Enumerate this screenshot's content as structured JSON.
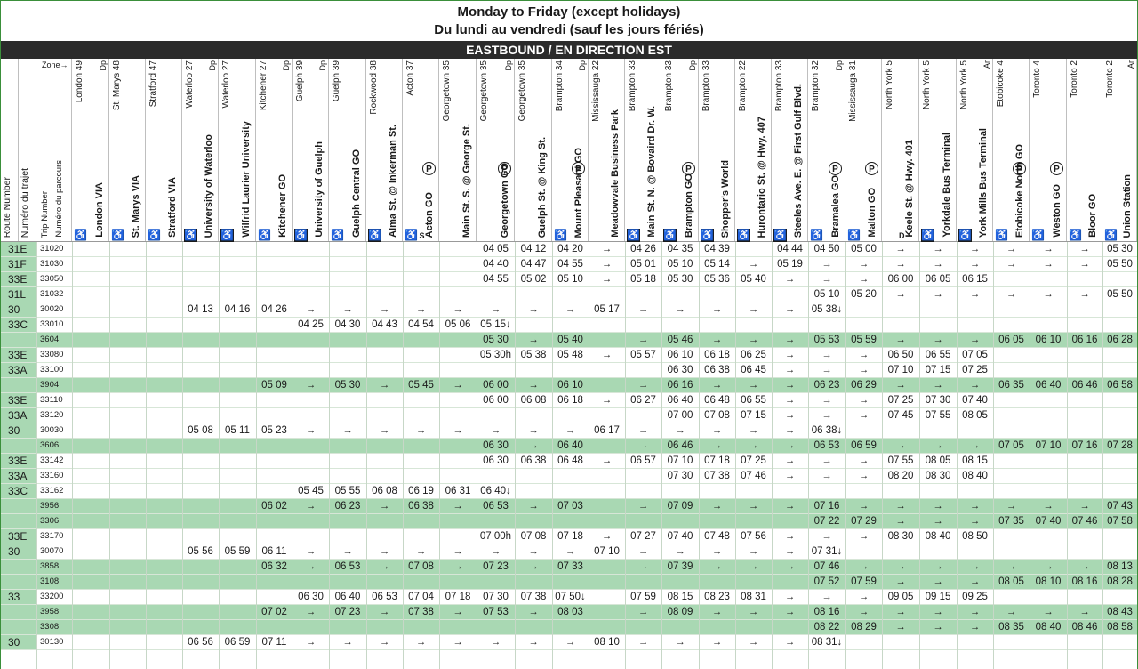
{
  "title_en": "Monday to Friday (except holidays)",
  "title_fr": "Du lundi au vendredi (sauf les jours fériés)",
  "direction": "EASTBOUND / EN DIRECTION EST",
  "header_labels": {
    "zone": "Zone→",
    "route_number": "Route Number",
    "route_number_fr": "Numéro du trajet",
    "trip_number": "Trip Number",
    "trip_number_fr": "Numéro du parcours"
  },
  "stops": [
    {
      "city": "London",
      "zone": "49",
      "dp": "Dp",
      "name": "London VIA",
      "icon": "light",
      "park": false,
      "mark": ""
    },
    {
      "city": "St. Marys",
      "zone": "48",
      "dp": "",
      "name": "St. Marys VIA",
      "icon": "light",
      "park": false,
      "mark": ""
    },
    {
      "city": "Stratford",
      "zone": "47",
      "dp": "",
      "name": "Stratford VIA",
      "icon": "light",
      "park": false,
      "mark": ""
    },
    {
      "city": "Waterloo",
      "zone": "27",
      "dp": "Dp",
      "name": "University of Waterloo",
      "icon": "dark",
      "park": false,
      "mark": ""
    },
    {
      "city": "Waterloo",
      "zone": "27",
      "dp": "",
      "name": "Wilfrid Laurier University",
      "icon": "dark",
      "park": false,
      "mark": ""
    },
    {
      "city": "Kitchener",
      "zone": "27",
      "dp": "Dp",
      "name": "Kitchener GO",
      "icon": "plain",
      "park": false,
      "mark": ""
    },
    {
      "city": "Guelph",
      "zone": "39",
      "dp": "Dp",
      "name": "University of Guelph",
      "icon": "dark",
      "park": false,
      "mark": ""
    },
    {
      "city": "Guelph",
      "zone": "39",
      "dp": "",
      "name": "Guelph Central GO",
      "icon": "plain",
      "park": false,
      "mark": ""
    },
    {
      "city": "Rockwood",
      "zone": "38",
      "dp": "",
      "name": "Alma St. @ Inkerman St.",
      "icon": "dark",
      "park": false,
      "mark": ""
    },
    {
      "city": "Acton",
      "zone": "37",
      "dp": "",
      "name": "Acton GO",
      "icon": "light",
      "park": true,
      "mark": "S"
    },
    {
      "city": "Georgetown",
      "zone": "35",
      "dp": "",
      "name": "Main St. S. @ George St.",
      "icon": "",
      "park": false,
      "mark": ""
    },
    {
      "city": "Georgetown",
      "zone": "35",
      "dp": "Dp",
      "name": "Georgetown GO",
      "icon": "",
      "park": true,
      "mark": ""
    },
    {
      "city": "Georgetown",
      "zone": "35",
      "dp": "",
      "name": "Guelph St. @ King St.",
      "icon": "",
      "park": false,
      "mark": ""
    },
    {
      "city": "Brampton",
      "zone": "34",
      "dp": "Dp",
      "name": "Mount Pleasant GO",
      "icon": "plain",
      "park": true,
      "mark": ""
    },
    {
      "city": "Mississauga",
      "zone": "22",
      "dp": "",
      "name": "Meadowvale Business Park",
      "icon": "",
      "park": false,
      "mark": ""
    },
    {
      "city": "Brampton",
      "zone": "33",
      "dp": "",
      "name": "Main St. N. @ Bovaird Dr. W.",
      "icon": "dark",
      "park": false,
      "mark": ""
    },
    {
      "city": "Brampton",
      "zone": "33",
      "dp": "Dp",
      "name": "Brampton GO",
      "icon": "dark",
      "park": true,
      "mark": ""
    },
    {
      "city": "Brampton",
      "zone": "33",
      "dp": "",
      "name": "Shopper's World",
      "icon": "dark",
      "park": false,
      "mark": ""
    },
    {
      "city": "Brampton",
      "zone": "22",
      "dp": "",
      "name": "Hurontario St. @ Hwy. 407",
      "icon": "dark",
      "park": false,
      "mark": ""
    },
    {
      "city": "Brampton",
      "zone": "33",
      "dp": "",
      "name": "Steeles Ave. E. @ First Gulf Blvd.",
      "icon": "dark",
      "park": false,
      "mark": ""
    },
    {
      "city": "Brampton",
      "zone": "32",
      "dp": "Dp",
      "name": "Bramalea GO",
      "icon": "plain",
      "park": true,
      "mark": ""
    },
    {
      "city": "Mississauga",
      "zone": "31",
      "dp": "",
      "name": "Malton GO",
      "icon": "plain",
      "park": true,
      "mark": ""
    },
    {
      "city": "North York",
      "zone": "5",
      "dp": "",
      "name": "Keele St. @ Hwy. 401",
      "icon": "",
      "park": false,
      "mark": "D"
    },
    {
      "city": "North York",
      "zone": "5",
      "dp": "",
      "name": "Yorkdale Bus Terminal",
      "icon": "dark",
      "park": false,
      "mark": ""
    },
    {
      "city": "North York",
      "zone": "5",
      "dp": "Ar",
      "name": "York Mills Bus Terminal",
      "icon": "dark",
      "park": false,
      "mark": ""
    },
    {
      "city": "Etobicoke",
      "zone": "4",
      "dp": "",
      "name": "Etobicoke North GO",
      "icon": "light",
      "park": true,
      "mark": ""
    },
    {
      "city": "Toronto",
      "zone": "4",
      "dp": "",
      "name": "Weston GO",
      "icon": "light",
      "park": true,
      "mark": ""
    },
    {
      "city": "Toronto",
      "zone": "2",
      "dp": "",
      "name": "Bloor GO",
      "icon": "light",
      "park": false,
      "mark": ""
    },
    {
      "city": "Toronto",
      "zone": "2",
      "dp": "Ar",
      "name": "Union Station",
      "icon": "plain",
      "park": false,
      "mark": ""
    }
  ],
  "trips": [
    {
      "route": "31E",
      "trip": "31020",
      "alt": false,
      "times": [
        "",
        "",
        "",
        "",
        "",
        "",
        "",
        "",
        "",
        "",
        "",
        "04 05",
        "04 12",
        "04 20",
        "→",
        "04 26",
        "04 35",
        "04 39",
        "",
        "04 44",
        "04 50",
        "05 00",
        "→",
        "→",
        "→",
        "→",
        "→",
        "→",
        "05 30"
      ]
    },
    {
      "route": "31F",
      "trip": "31030",
      "alt": false,
      "times": [
        "",
        "",
        "",
        "",
        "",
        "",
        "",
        "",
        "",
        "",
        "",
        "04 40",
        "04 47",
        "04 55",
        "→",
        "05 01",
        "05 10",
        "05 14",
        "→",
        "05 19",
        "→",
        "→",
        "→",
        "→",
        "→",
        "→",
        "→",
        "→",
        "05 50"
      ]
    },
    {
      "route": "33E",
      "trip": "33050",
      "alt": false,
      "times": [
        "",
        "",
        "",
        "",
        "",
        "",
        "",
        "",
        "",
        "",
        "",
        "04 55",
        "05 02",
        "05 10",
        "→",
        "05 18",
        "05 30",
        "05 36",
        "05 40",
        "→",
        "→",
        "→",
        "06 00",
        "06 05",
        "06 15",
        "",
        "",
        "",
        ""
      ]
    },
    {
      "route": "31L",
      "trip": "31032",
      "alt": false,
      "times": [
        "",
        "",
        "",
        "",
        "",
        "",
        "",
        "",
        "",
        "",
        "",
        "",
        "",
        "",
        "",
        "",
        "",
        "",
        "",
        "",
        "05 10",
        "05 20",
        "→",
        "→",
        "→",
        "→",
        "→",
        "→",
        "05 50"
      ]
    },
    {
      "route": "30",
      "trip": "30020",
      "alt": false,
      "times": [
        "",
        "",
        "",
        "04 13",
        "04 16",
        "04 26",
        "→",
        "→",
        "→",
        "→",
        "→",
        "→",
        "→",
        "→",
        "05 17",
        "→",
        "→",
        "→",
        "→",
        "→",
        "05 38↓",
        "",
        "",
        "",
        "",
        "",
        "",
        "",
        ""
      ]
    },
    {
      "route": "33C",
      "trip": "33010",
      "alt": false,
      "times": [
        "",
        "",
        "",
        "",
        "",
        "",
        "04 25",
        "04 30",
        "04 43",
        "04 54",
        "05 06",
        "05 15↓",
        "",
        "",
        "",
        "",
        "",
        "",
        "",
        "",
        "",
        "",
        "",
        "",
        "",
        "",
        "",
        "",
        ""
      ]
    },
    {
      "route": "",
      "trip": "3604",
      "alt": true,
      "times": [
        "",
        "",
        "",
        "",
        "",
        "",
        "",
        "",
        "",
        "",
        "",
        "05 30",
        "→",
        "05 40",
        "",
        "→",
        "05 46",
        "→",
        "→",
        "→",
        "05 53",
        "05 59",
        "→",
        "→",
        "→",
        "06 05",
        "06 10",
        "06 16",
        "06 28"
      ]
    },
    {
      "route": "33E",
      "trip": "33080",
      "alt": false,
      "times": [
        "",
        "",
        "",
        "",
        "",
        "",
        "",
        "",
        "",
        "",
        "",
        "05 30h",
        "05 38",
        "05 48",
        "→",
        "05 57",
        "06 10",
        "06 18",
        "06 25",
        "→",
        "→",
        "→",
        "06 50",
        "06 55",
        "07 05",
        "",
        "",
        "",
        ""
      ]
    },
    {
      "route": "33A",
      "trip": "33100",
      "alt": false,
      "times": [
        "",
        "",
        "",
        "",
        "",
        "",
        "",
        "",
        "",
        "",
        "",
        "",
        "",
        "",
        "",
        "",
        "06 30",
        "06 38",
        "06 45",
        "→",
        "→",
        "→",
        "07 10",
        "07 15",
        "07 25",
        "",
        "",
        "",
        ""
      ]
    },
    {
      "route": "",
      "trip": "3904",
      "alt": true,
      "times": [
        "",
        "",
        "",
        "",
        "",
        "05 09",
        "→",
        "05 30",
        "→",
        "05 45",
        "→",
        "06 00",
        "→",
        "06 10",
        "",
        "→",
        "06 16",
        "→",
        "→",
        "→",
        "06 23",
        "06 29",
        "→",
        "→",
        "→",
        "06 35",
        "06 40",
        "06 46",
        "06 58"
      ]
    },
    {
      "route": "33E",
      "trip": "33110",
      "alt": false,
      "times": [
        "",
        "",
        "",
        "",
        "",
        "",
        "",
        "",
        "",
        "",
        "",
        "06 00",
        "06 08",
        "06 18",
        "→",
        "06 27",
        "06 40",
        "06 48",
        "06 55",
        "→",
        "→",
        "→",
        "07 25",
        "07 30",
        "07 40",
        "",
        "",
        "",
        ""
      ]
    },
    {
      "route": "33A",
      "trip": "33120",
      "alt": false,
      "times": [
        "",
        "",
        "",
        "",
        "",
        "",
        "",
        "",
        "",
        "",
        "",
        "",
        "",
        "",
        "",
        "",
        "07 00",
        "07 08",
        "07 15",
        "→",
        "→",
        "→",
        "07 45",
        "07 55",
        "08 05",
        "",
        "",
        "",
        ""
      ]
    },
    {
      "route": "30",
      "trip": "30030",
      "alt": false,
      "times": [
        "",
        "",
        "",
        "05 08",
        "05 11",
        "05 23",
        "→",
        "→",
        "→",
        "→",
        "→",
        "→",
        "→",
        "→",
        "06 17",
        "→",
        "→",
        "→",
        "→",
        "→",
        "06 38↓",
        "",
        "",
        "",
        "",
        "",
        "",
        "",
        ""
      ]
    },
    {
      "route": "",
      "trip": "3606",
      "alt": true,
      "times": [
        "",
        "",
        "",
        "",
        "",
        "",
        "",
        "",
        "",
        "",
        "",
        "06 30",
        "→",
        "06 40",
        "",
        "→",
        "06 46",
        "→",
        "→",
        "→",
        "06 53",
        "06 59",
        "→",
        "→",
        "→",
        "07 05",
        "07 10",
        "07 16",
        "07 28"
      ]
    },
    {
      "route": "33E",
      "trip": "33142",
      "alt": false,
      "times": [
        "",
        "",
        "",
        "",
        "",
        "",
        "",
        "",
        "",
        "",
        "",
        "06 30",
        "06 38",
        "06 48",
        "→",
        "06 57",
        "07 10",
        "07 18",
        "07 25",
        "→",
        "→",
        "→",
        "07 55",
        "08 05",
        "08 15",
        "",
        "",
        "",
        ""
      ]
    },
    {
      "route": "33A",
      "trip": "33160",
      "alt": false,
      "times": [
        "",
        "",
        "",
        "",
        "",
        "",
        "",
        "",
        "",
        "",
        "",
        "",
        "",
        "",
        "",
        "",
        "07 30",
        "07 38",
        "07 46",
        "→",
        "→",
        "→",
        "08 20",
        "08 30",
        "08 40",
        "",
        "",
        "",
        ""
      ]
    },
    {
      "route": "33C",
      "trip": "33162",
      "alt": false,
      "times": [
        "",
        "",
        "",
        "",
        "",
        "",
        "05 45",
        "05 55",
        "06 08",
        "06 19",
        "06 31",
        "06 40↓",
        "",
        "",
        "",
        "",
        "",
        "",
        "",
        "",
        "",
        "",
        "",
        "",
        "",
        "",
        "",
        "",
        ""
      ]
    },
    {
      "route": "",
      "trip": "3956",
      "alt": true,
      "times": [
        "",
        "",
        "",
        "",
        "",
        "06 02",
        "→",
        "06 23",
        "→",
        "06 38",
        "→",
        "06 53",
        "→",
        "07 03",
        "",
        "→",
        "07 09",
        "→",
        "→",
        "→",
        "07 16",
        "→",
        "→",
        "→",
        "→",
        "→",
        "→",
        "→",
        "07 43"
      ]
    },
    {
      "route": "",
      "trip": "3306",
      "alt": true,
      "times": [
        "",
        "",
        "",
        "",
        "",
        "",
        "",
        "",
        "",
        "",
        "",
        "",
        "",
        "",
        "",
        "",
        "",
        "",
        "",
        "",
        "07 22",
        "07 29",
        "→",
        "→",
        "→",
        "07 35",
        "07 40",
        "07 46",
        "07 58"
      ]
    },
    {
      "route": "33E",
      "trip": "33170",
      "alt": false,
      "times": [
        "",
        "",
        "",
        "",
        "",
        "",
        "",
        "",
        "",
        "",
        "",
        "07 00h",
        "07 08",
        "07 18",
        "→",
        "07 27",
        "07 40",
        "07 48",
        "07 56",
        "→",
        "→",
        "→",
        "08 30",
        "08 40",
        "08 50",
        "",
        "",
        "",
        ""
      ]
    },
    {
      "route": "30",
      "trip": "30070",
      "alt": false,
      "times": [
        "",
        "",
        "",
        "05 56",
        "05 59",
        "06 11",
        "→",
        "→",
        "→",
        "→",
        "→",
        "→",
        "→",
        "→",
        "07 10",
        "→",
        "→",
        "→",
        "→",
        "→",
        "07 31↓",
        "",
        "",
        "",
        "",
        "",
        "",
        "",
        ""
      ]
    },
    {
      "route": "",
      "trip": "3858",
      "alt": true,
      "times": [
        "",
        "",
        "",
        "",
        "",
        "06 32",
        "→",
        "06 53",
        "→",
        "07 08",
        "→",
        "07 23",
        "→",
        "07 33",
        "",
        "→",
        "07 39",
        "→",
        "→",
        "→",
        "07 46",
        "→",
        "→",
        "→",
        "→",
        "→",
        "→",
        "→",
        "08 13"
      ]
    },
    {
      "route": "",
      "trip": "3108",
      "alt": true,
      "times": [
        "",
        "",
        "",
        "",
        "",
        "",
        "",
        "",
        "",
        "",
        "",
        "",
        "",
        "",
        "",
        "",
        "",
        "",
        "",
        "",
        "07 52",
        "07 59",
        "→",
        "→",
        "→",
        "08 05",
        "08 10",
        "08 16",
        "08 28"
      ]
    },
    {
      "route": "33",
      "trip": "33200",
      "alt": false,
      "times": [
        "",
        "",
        "",
        "",
        "",
        "",
        "06 30",
        "06 40",
        "06 53",
        "07 04",
        "07 18",
        "07 30",
        "07 38",
        "07 50↓",
        "",
        "07 59",
        "08 15",
        "08 23",
        "08 31",
        "→",
        "→",
        "→",
        "09 05",
        "09 15",
        "09 25",
        "",
        "",
        "",
        ""
      ]
    },
    {
      "route": "",
      "trip": "3958",
      "alt": true,
      "times": [
        "",
        "",
        "",
        "",
        "",
        "07 02",
        "→",
        "07 23",
        "→",
        "07 38",
        "→",
        "07 53",
        "→",
        "08 03",
        "",
        "→",
        "08 09",
        "→",
        "→",
        "→",
        "08 16",
        "→",
        "→",
        "→",
        "→",
        "→",
        "→",
        "→",
        "08 43"
      ]
    },
    {
      "route": "",
      "trip": "3308",
      "alt": true,
      "times": [
        "",
        "",
        "",
        "",
        "",
        "",
        "",
        "",
        "",
        "",
        "",
        "",
        "",
        "",
        "",
        "",
        "",
        "",
        "",
        "",
        "08 22",
        "08 29",
        "→",
        "→",
        "→",
        "08 35",
        "08 40",
        "08 46",
        "08 58"
      ]
    },
    {
      "route": "30",
      "trip": "30130",
      "alt": false,
      "times": [
        "",
        "",
        "",
        "06 56",
        "06 59",
        "07 11",
        "→",
        "→",
        "→",
        "→",
        "→",
        "→",
        "→",
        "→",
        "08 10",
        "→",
        "→",
        "→",
        "→",
        "→",
        "08 31↓",
        "",
        "",
        "",
        "",
        "",
        "",
        "",
        ""
      ]
    }
  ]
}
